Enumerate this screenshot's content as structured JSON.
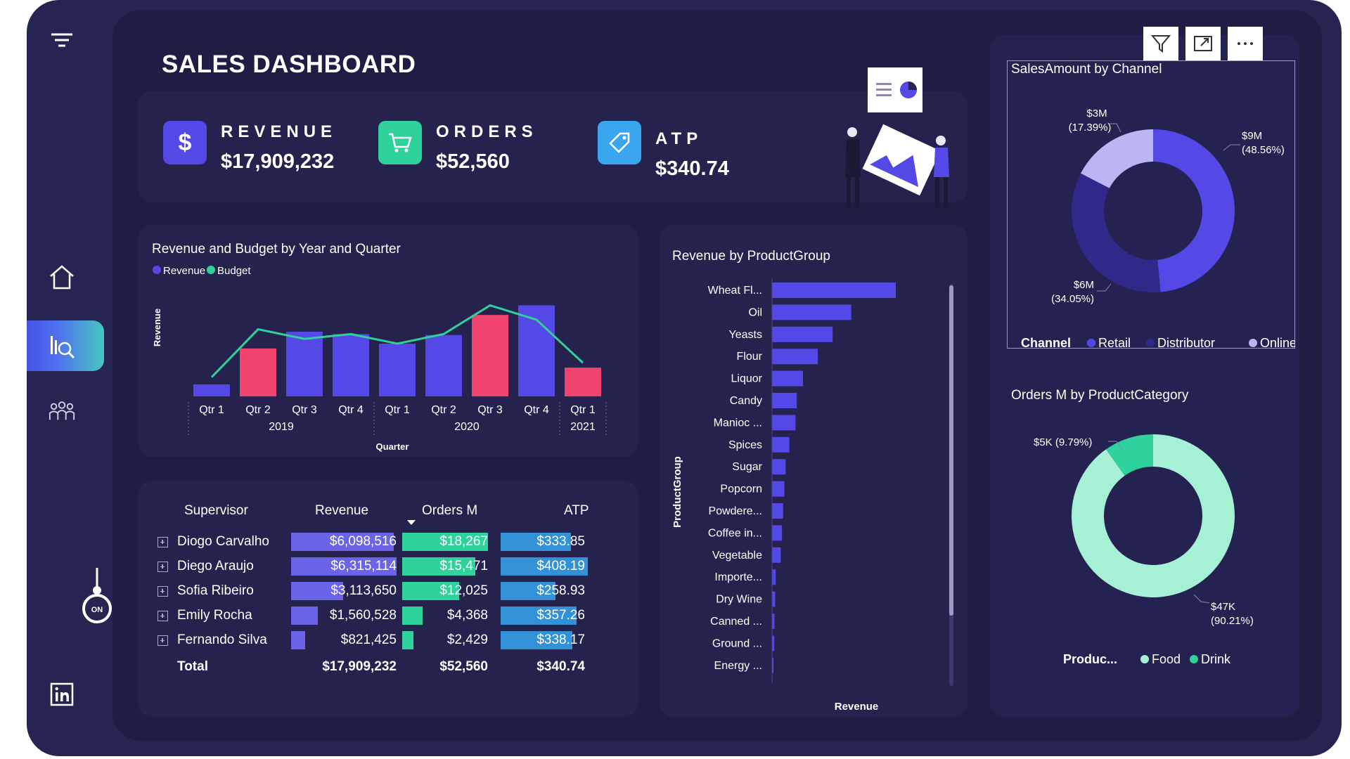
{
  "header": {
    "title": "SALES DASHBOARD"
  },
  "kpis": [
    {
      "label": "REVENUE",
      "value": "$17,909,232",
      "icon": "dollar-icon",
      "color": "#5448e6"
    },
    {
      "label": "ORDERS",
      "value": "$52,560",
      "icon": "cart-icon",
      "color": "#2fd19c"
    },
    {
      "label": "ATP",
      "value": "$340.74",
      "icon": "tag-icon",
      "color": "#3aa6ee"
    }
  ],
  "sidebar": {
    "items": [
      {
        "name": "filter-menu",
        "icon": "filter-lines-icon"
      },
      {
        "name": "home",
        "icon": "home-icon"
      },
      {
        "name": "analytics",
        "icon": "chart-search-icon"
      },
      {
        "name": "team",
        "icon": "people-icon"
      },
      {
        "name": "toggle",
        "icon": "on-switch-icon",
        "label": "ON"
      },
      {
        "name": "linkedin",
        "icon": "linkedin-icon"
      }
    ]
  },
  "toolbar": {
    "buttons": [
      "filter-icon",
      "focus-mode-icon",
      "more-options-icon"
    ]
  },
  "colors": {
    "revenue": "#5448e6",
    "budget": "#2fd19c",
    "highlight": "#f0446e",
    "atp": "#3391d8"
  },
  "chart_data": [
    {
      "type": "bar",
      "title": "Revenue and Budget by Year and Quarter",
      "legend": [
        "Revenue",
        "Budget"
      ],
      "ylabel": "Revenue",
      "xlabel": "Quarter",
      "categories": [
        "Qtr 1",
        "Qtr 2",
        "Qtr 3",
        "Qtr 4",
        "Qtr 1",
        "Qtr 2",
        "Qtr 3",
        "Qtr 4",
        "Qtr 1"
      ],
      "years": [
        {
          "label": "2019",
          "span": 4
        },
        {
          "label": "2020",
          "span": 4
        },
        {
          "label": "2021",
          "span": 1
        }
      ],
      "series": [
        {
          "name": "Revenue",
          "values": [
            0.25,
            1.0,
            1.35,
            1.3,
            1.1,
            1.28,
            1.7,
            1.9,
            0.6
          ],
          "highlight": [
            false,
            true,
            false,
            false,
            false,
            false,
            true,
            false,
            true
          ]
        },
        {
          "name": "Budget",
          "values": [
            0.4,
            1.4,
            1.2,
            1.3,
            1.1,
            1.3,
            1.9,
            1.6,
            0.7
          ]
        }
      ],
      "ylim": [
        0,
        2.2
      ]
    },
    {
      "type": "bar",
      "orientation": "horizontal",
      "title": "Revenue by ProductGroup",
      "ylabel": "ProductGroup",
      "xlabel": "Revenue",
      "categories": [
        "Wheat Fl...",
        "Oil",
        "Yeasts",
        "Flour",
        "Liquor",
        "Candy",
        "Manioc ...",
        "Spices",
        "Sugar",
        "Popcorn",
        "Powdere...",
        "Coffee in...",
        "Vegetable",
        "Importe...",
        "Dry Wine",
        "Canned ...",
        "Ground ...",
        "Energy ..."
      ],
      "values": [
        100,
        64,
        49,
        37,
        25,
        20,
        19,
        14,
        11,
        10,
        9,
        8,
        7,
        3,
        2.5,
        2,
        1.8,
        1.2
      ],
      "xlim": [
        0,
        100
      ]
    },
    {
      "type": "pie",
      "donut": true,
      "title": "SalesAmount by Channel",
      "legend_title": "Channel",
      "legend": [
        "Retail",
        "Distributor",
        "Online"
      ],
      "values": [
        48.56,
        34.05,
        17.39
      ],
      "labels": [
        {
          "amount": "$9M",
          "pct": "(48.56%)"
        },
        {
          "amount": "$6M",
          "pct": "(34.05%)"
        },
        {
          "amount": "$3M",
          "pct": "(17.39%)"
        }
      ],
      "colors": [
        "#5448e6",
        "#2f2a8a",
        "#b9b6f3"
      ]
    },
    {
      "type": "pie",
      "donut": true,
      "title": "Orders M by ProductCategory",
      "legend_title": "Produc...",
      "legend": [
        "Food",
        "Drink"
      ],
      "values": [
        90.21,
        9.79
      ],
      "labels": [
        {
          "amount": "$47K",
          "pct": "(90.21%)"
        },
        {
          "amount": "$5K (9.79%)",
          "pct": ""
        }
      ],
      "colors": [
        "#a6f0d6",
        "#2fd19c"
      ]
    }
  ],
  "table": {
    "columns": [
      "Supervisor",
      "Revenue",
      "Orders M",
      "ATP"
    ],
    "rows": [
      {
        "name": "Diogo Carvalho",
        "revenue": "$6,098,516",
        "orders": "$18,267",
        "atp": "$333.85",
        "rev_frac": 0.97,
        "ord_frac": 1.0,
        "atp_frac": 0.81
      },
      {
        "name": "Diego Araujo",
        "revenue": "$6,315,114",
        "orders": "$15,471",
        "atp": "$408.19",
        "rev_frac": 1.0,
        "ord_frac": 0.85,
        "atp_frac": 1.0
      },
      {
        "name": "Sofia Ribeiro",
        "revenue": "$3,113,650",
        "orders": "$12,025",
        "atp": "$258.93",
        "rev_frac": 0.49,
        "ord_frac": 0.66,
        "atp_frac": 0.63
      },
      {
        "name": "Emily Rocha",
        "revenue": "$1,560,528",
        "orders": "$4,368",
        "atp": "$357.26",
        "rev_frac": 0.25,
        "ord_frac": 0.24,
        "atp_frac": 0.87
      },
      {
        "name": "Fernando Silva",
        "revenue": "$821,425",
        "orders": "$2,429",
        "atp": "$338.17",
        "rev_frac": 0.13,
        "ord_frac": 0.13,
        "atp_frac": 0.82
      }
    ],
    "total": {
      "label": "Total",
      "revenue": "$17,909,232",
      "orders": "$52,560",
      "atp": "$340.74"
    }
  }
}
